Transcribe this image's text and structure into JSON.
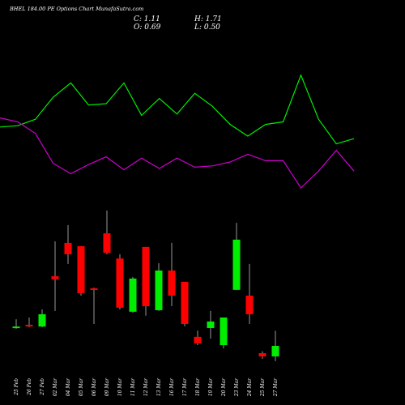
{
  "chart_data": {
    "type": "candlestick",
    "title": "BHEL 184.00 PE Options Chart MunafaSutra.com",
    "ohlc_labels": [
      "C: 1.11",
      "H: 1.71",
      "O: 0.69",
      "L: 0.50"
    ],
    "categories": [
      "25 Feb",
      "26 Feb",
      "27 Feb",
      "02 Mar",
      "04 Mar",
      "05 Mar",
      "06 Mar",
      "09 Mar",
      "10 Mar",
      "11 Mar",
      "12 Mar",
      "13 Mar",
      "16 Mar",
      "17 Mar",
      "18 Mar",
      "19 Mar",
      "20 Mar",
      "23 Mar",
      "24 Mar",
      "25 Mar",
      "27 Mar"
    ],
    "open": [
      1.82,
      1.95,
      1.88,
      3.88,
      5.21,
      5.08,
      3.4,
      5.59,
      4.59,
      2.47,
      5.05,
      2.53,
      4.11,
      3.66,
      1.47,
      1.82,
      1.14,
      3.34,
      3.11,
      0.82,
      0.69
    ],
    "high": [
      2.17,
      2.24,
      2.56,
      5.27,
      5.92,
      5.08,
      3.43,
      6.5,
      4.76,
      3.85,
      5.05,
      4.4,
      5.21,
      3.66,
      1.72,
      2.5,
      2.24,
      6.01,
      4.37,
      0.89,
      1.71
    ],
    "low": [
      1.79,
      1.85,
      1.85,
      2.5,
      4.37,
      3.11,
      1.98,
      4.76,
      2.56,
      2.43,
      2.31,
      2.5,
      2.69,
      1.89,
      1.14,
      1.4,
      1.01,
      3.34,
      1.98,
      0.59,
      0.5
    ],
    "close": [
      1.88,
      1.92,
      2.37,
      3.76,
      4.76,
      3.21,
      3.34,
      4.82,
      2.63,
      3.79,
      2.69,
      4.11,
      3.11,
      1.98,
      1.21,
      2.08,
      2.24,
      5.34,
      2.37,
      0.69,
      1.11
    ],
    "up_color": "#00ee00",
    "down_color": "#ff0000",
    "ylim": [
      0,
      7.2
    ],
    "lines": [
      {
        "color": "#00ee00",
        "values": [
          52,
          53,
          58,
          75,
          86,
          69,
          70,
          86,
          61,
          74,
          62,
          78,
          68,
          54,
          45,
          54,
          56,
          92,
          58,
          39,
          43
        ]
      },
      {
        "color": "#cc00cc",
        "values": [
          59,
          56,
          47,
          24,
          16,
          23,
          29,
          19,
          28,
          20,
          28,
          21,
          22,
          25,
          31,
          26,
          26,
          5,
          18,
          34,
          18
        ]
      }
    ],
    "line_ylim": [
      0,
      100
    ]
  }
}
